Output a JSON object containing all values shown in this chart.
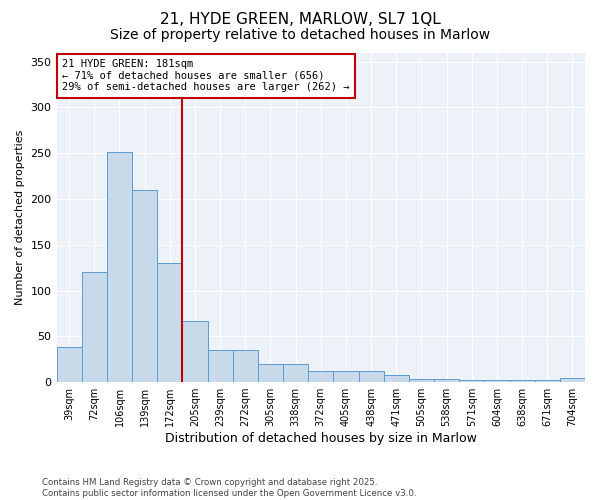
{
  "title1": "21, HYDE GREEN, MARLOW, SL7 1QL",
  "title2": "Size of property relative to detached houses in Marlow",
  "xlabel": "Distribution of detached houses by size in Marlow",
  "ylabel": "Number of detached properties",
  "categories": [
    "39sqm",
    "72sqm",
    "106sqm",
    "139sqm",
    "172sqm",
    "205sqm",
    "239sqm",
    "272sqm",
    "305sqm",
    "338sqm",
    "372sqm",
    "405sqm",
    "438sqm",
    "471sqm",
    "505sqm",
    "538sqm",
    "571sqm",
    "604sqm",
    "638sqm",
    "671sqm",
    "704sqm"
  ],
  "values": [
    38,
    120,
    251,
    210,
    130,
    67,
    35,
    35,
    20,
    20,
    12,
    12,
    12,
    8,
    3,
    3,
    2,
    2,
    2,
    2,
    5
  ],
  "bar_color": "#c8daea",
  "bar_edge_color": "#5b9bd5",
  "ref_line_index": 4.5,
  "ref_line_label": "21 HYDE GREEN: 181sqm",
  "ref_line_color": "#c00000",
  "annotation_line1": "21 HYDE GREEN: 181sqm",
  "annotation_line2": "← 71% of detached houses are smaller (656)",
  "annotation_line3": "29% of semi-detached houses are larger (262) →",
  "ylim": [
    0,
    360
  ],
  "yticks": [
    0,
    50,
    100,
    150,
    200,
    250,
    300,
    350
  ],
  "bg_color": "#edf2f9",
  "footer": "Contains HM Land Registry data © Crown copyright and database right 2025.\nContains public sector information licensed under the Open Government Licence v3.0.",
  "annotation_box_color": "#c00000",
  "title_fontsize": 11,
  "subtitle_fontsize": 10
}
